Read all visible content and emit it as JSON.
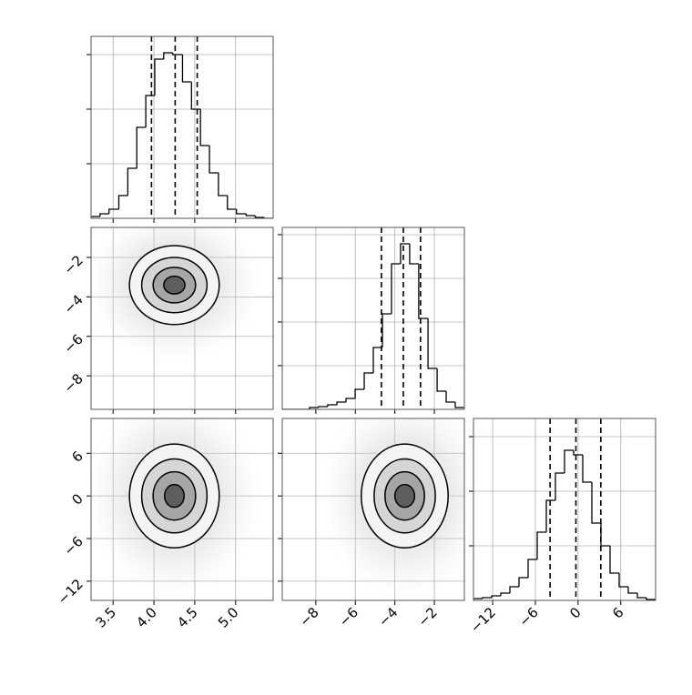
{
  "chart_data": [
    {
      "type": "histogram",
      "bins": [
        3.23,
        3.34,
        3.45,
        3.57,
        3.68,
        3.79,
        3.9,
        4.01,
        4.12,
        4.23,
        4.35,
        4.46,
        4.57,
        4.68,
        4.79,
        4.9,
        5.01,
        5.13,
        5.24,
        5.35,
        5.46
      ],
      "counts": [
        2,
        5,
        10,
        25,
        55,
        100,
        135,
        175,
        182,
        180,
        150,
        120,
        80,
        50,
        25,
        10,
        5,
        3,
        1,
        0
      ],
      "quantiles": [
        3.97,
        4.26,
        4.53
      ],
      "xlim": [
        3.23,
        5.46
      ],
      "xticks": [
        3.5,
        {
          "value": 4,
          "label": "4.0"
        },
        4.5,
        {
          "value": 5,
          "label": "5.0"
        }
      ],
      "ylim": [
        0,
        200
      ],
      "yticks": [
        60,
        120,
        180
      ],
      "grid": true
    },
    {
      "type": "density2d",
      "xlim": [
        3.23,
        5.46
      ],
      "xticks": [
        3.5,
        {
          "value": 4,
          "label": "4.0"
        },
        4.5,
        {
          "value": 5,
          "label": "5.0"
        }
      ],
      "ylim": [
        -9.7,
        -0.48
      ],
      "yticks": [
        {
          "value": -8,
          "label": "−8"
        },
        {
          "value": -6,
          "label": "−6"
        },
        {
          "value": -4,
          "label": "−4"
        },
        {
          "value": -2,
          "label": "−2"
        }
      ],
      "center": [
        4.25,
        -3.4
      ],
      "contours": [
        {
          "rx": 0.55,
          "ry": 2.0
        },
        {
          "rx": 0.4,
          "ry": 1.4
        },
        {
          "rx": 0.26,
          "ry": 0.9
        },
        {
          "rx": 0.13,
          "ry": 0.45
        }
      ],
      "grid": true
    },
    {
      "type": "histogram",
      "bins": [
        -9.7,
        -9.24,
        -8.78,
        -8.32,
        -7.86,
        -7.4,
        -6.93,
        -6.47,
        -6.01,
        -5.55,
        -5.09,
        -4.63,
        -4.17,
        -3.71,
        -3.25,
        -2.79,
        -2.32,
        -1.86,
        -1.4,
        -0.94,
        -0.48
      ],
      "counts": [
        0,
        0,
        0,
        2,
        3,
        5,
        8,
        12,
        22,
        40,
        68,
        105,
        160,
        182,
        160,
        100,
        45,
        20,
        8,
        2
      ],
      "quantiles": [
        -4.68,
        -3.57,
        -2.7
      ],
      "xlim": [
        -9.7,
        -0.48
      ],
      "xticks": [
        {
          "value": -8,
          "label": "−8"
        },
        {
          "value": -6,
          "label": "−6"
        },
        {
          "value": -4,
          "label": "−4"
        },
        {
          "value": -2,
          "label": "−2"
        }
      ],
      "ylim": [
        0,
        200
      ],
      "yticks": [
        48,
        96,
        144,
        192
      ],
      "grid": true
    },
    {
      "type": "density2d",
      "xlim": [
        3.23,
        5.46
      ],
      "xticks": [
        3.5,
        {
          "value": 4,
          "label": "4.0"
        },
        4.5,
        {
          "value": 5,
          "label": "5.0"
        }
      ],
      "ylim": [
        -14.7,
        10.9
      ],
      "yticks": [
        {
          "value": -12,
          "label": "−12"
        },
        {
          "value": -6,
          "label": "−6"
        },
        0,
        6
      ],
      "center": [
        4.25,
        0
      ],
      "contours": [
        {
          "rx": 0.55,
          "ry": 7.3
        },
        {
          "rx": 0.4,
          "ry": 5.2
        },
        {
          "rx": 0.26,
          "ry": 3.4
        },
        {
          "rx": 0.12,
          "ry": 1.6
        }
      ],
      "grid": true
    },
    {
      "type": "density2d",
      "xlim": [
        -9.7,
        -0.48
      ],
      "xticks": [
        {
          "value": -8,
          "label": "−8"
        },
        {
          "value": -6,
          "label": "−6"
        },
        {
          "value": -4,
          "label": "−4"
        },
        {
          "value": -2,
          "label": "−2"
        }
      ],
      "ylim": [
        -14.7,
        10.9
      ],
      "yticks": [
        {
          "value": -12,
          "label": "−12"
        },
        {
          "value": -6,
          "label": "−6"
        },
        0,
        6
      ],
      "center": [
        -3.5,
        0
      ],
      "contours": [
        {
          "rx": 2.2,
          "ry": 7.3
        },
        {
          "rx": 1.55,
          "ry": 5.2
        },
        {
          "rx": 1.0,
          "ry": 3.4
        },
        {
          "rx": 0.5,
          "ry": 1.6
        }
      ],
      "grid": true
    },
    {
      "type": "histogram",
      "bins": [
        -14.7,
        -13.42,
        -12.14,
        -10.86,
        -9.58,
        -8.3,
        -7.02,
        -5.74,
        -4.46,
        -3.18,
        -1.9,
        -0.62,
        0.66,
        1.94,
        3.22,
        4.5,
        5.78,
        7.06,
        8.34,
        9.62,
        10.9
      ],
      "counts": [
        2,
        3,
        5,
        8,
        15,
        25,
        45,
        75,
        110,
        140,
        165,
        160,
        130,
        85,
        60,
        30,
        15,
        8,
        3,
        1
      ],
      "quantiles": [
        -3.93,
        -0.3,
        3.2
      ],
      "xlim": [
        -14.7,
        10.9
      ],
      "xticks": [
        {
          "value": -12,
          "label": "−12"
        },
        {
          "value": -6,
          "label": "−6"
        },
        0,
        6
      ],
      "ylim": [
        0,
        200
      ],
      "yticks": [
        60,
        120,
        180
      ],
      "grid": true
    }
  ]
}
